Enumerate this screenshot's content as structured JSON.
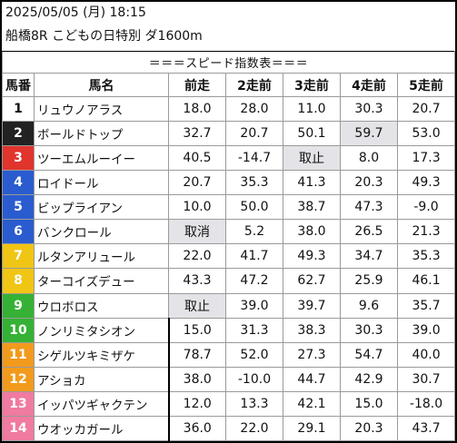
{
  "header": {
    "datetime": "2025/05/05 (月) 18:15",
    "race": "船橋8R こどもの日特別 ダ1600m"
  },
  "table": {
    "banner": "＝＝＝スピード指数表＝＝＝",
    "columns": [
      "馬番",
      "馬名",
      "前走",
      "2走前",
      "3走前",
      "4走前",
      "5走前"
    ],
    "rows": [
      {
        "num": "1",
        "name": "リュウノアラス",
        "vals": [
          "18.0",
          "28.0",
          "11.0",
          "30.3",
          "20.7"
        ],
        "num_bg": "#ffffff",
        "num_fg": "#111111",
        "hl": []
      },
      {
        "num": "2",
        "name": "ボールドトップ",
        "vals": [
          "32.7",
          "20.7",
          "50.1",
          "59.7",
          "53.0"
        ],
        "num_bg": "#222222",
        "num_fg": "#ffffff",
        "hl": [
          3
        ]
      },
      {
        "num": "3",
        "name": "ツーエムルーイー",
        "vals": [
          "40.5",
          "-14.7",
          "取止",
          "8.0",
          "17.3"
        ],
        "num_bg": "#e0342c",
        "num_fg": "#ffffff",
        "hl": [
          2
        ]
      },
      {
        "num": "4",
        "name": "ロイドール",
        "vals": [
          "20.7",
          "35.3",
          "41.3",
          "20.3",
          "49.3"
        ],
        "num_bg": "#2a5ccf",
        "num_fg": "#ffffff",
        "hl": []
      },
      {
        "num": "5",
        "name": "ビップライアン",
        "vals": [
          "10.0",
          "50.0",
          "38.7",
          "47.3",
          "-9.0"
        ],
        "num_bg": "#2a5ccf",
        "num_fg": "#ffffff",
        "hl": []
      },
      {
        "num": "6",
        "name": "バンクロール",
        "vals": [
          "取消",
          "5.2",
          "38.0",
          "26.5",
          "21.3"
        ],
        "num_bg": "#2a5ccf",
        "num_fg": "#ffffff",
        "hl": [
          0
        ]
      },
      {
        "num": "7",
        "name": "ルタンアリュール",
        "vals": [
          "22.0",
          "41.7",
          "49.3",
          "34.7",
          "35.3"
        ],
        "num_bg": "#f0c514",
        "num_fg": "#ffffff",
        "hl": []
      },
      {
        "num": "8",
        "name": "ターコイズデュー",
        "vals": [
          "43.3",
          "47.2",
          "62.7",
          "25.9",
          "46.1"
        ],
        "num_bg": "#f0c514",
        "num_fg": "#ffffff",
        "hl": []
      },
      {
        "num": "9",
        "name": "ウロボロス",
        "vals": [
          "取止",
          "39.0",
          "39.7",
          "9.6",
          "35.7"
        ],
        "num_bg": "#35b235",
        "num_fg": "#ffffff",
        "hl": [
          0
        ]
      },
      {
        "num": "10",
        "name": "ノンリミタシオン",
        "vals": [
          "15.0",
          "31.3",
          "38.3",
          "30.3",
          "39.0"
        ],
        "num_bg": "#35b235",
        "num_fg": "#ffffff",
        "hl": []
      },
      {
        "num": "11",
        "name": "シゲルツキミザケ",
        "vals": [
          "78.7",
          "52.0",
          "27.3",
          "54.7",
          "40.0"
        ],
        "num_bg": "#f29a1c",
        "num_fg": "#ffffff",
        "hl": []
      },
      {
        "num": "12",
        "name": "アショカ",
        "vals": [
          "38.0",
          "-10.0",
          "44.7",
          "42.9",
          "30.7"
        ],
        "num_bg": "#f29a1c",
        "num_fg": "#ffffff",
        "hl": []
      },
      {
        "num": "13",
        "name": "イッパツギャクテン",
        "vals": [
          "12.0",
          "13.3",
          "42.1",
          "15.0",
          "-18.0"
        ],
        "num_bg": "#f07aa0",
        "num_fg": "#ffffff",
        "hl": []
      },
      {
        "num": "14",
        "name": "ウオッカガール",
        "vals": [
          "36.0",
          "22.0",
          "29.1",
          "20.3",
          "43.7"
        ],
        "num_bg": "#f07aa0",
        "num_fg": "#ffffff",
        "hl": []
      }
    ]
  },
  "colors": {
    "highlight_cell": "#e4e4e8",
    "grid": "#9a9a9a",
    "frame": "#000000"
  }
}
